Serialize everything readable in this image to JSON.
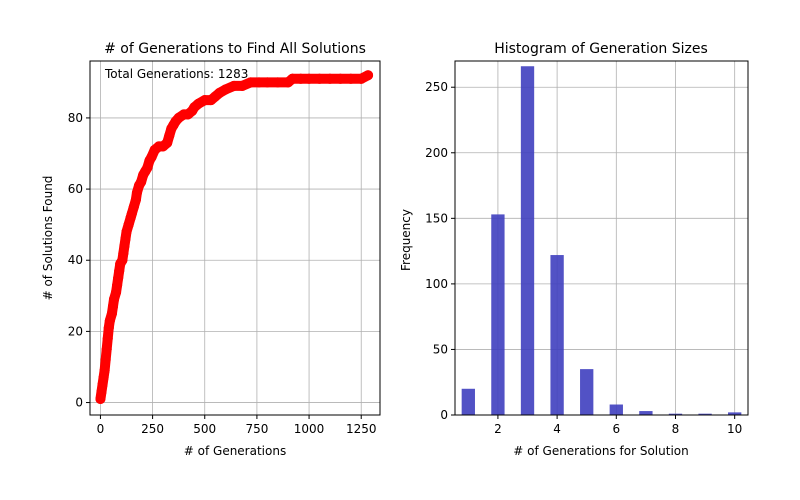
{
  "chart_data": [
    {
      "type": "scatter",
      "title": "# of Generations to Find All Solutions",
      "xlabel": "# of Generations",
      "ylabel": "# of Solutions Found",
      "annotation": "Total Generations: 1283",
      "xlim": [
        -50,
        1340
      ],
      "ylim": [
        -3.5,
        96
      ],
      "xticks": [
        0,
        250,
        500,
        750,
        1000,
        1250
      ],
      "yticks": [
        0,
        20,
        40,
        60,
        80
      ],
      "grid": true,
      "color": "#ff0000",
      "points": [
        [
          0,
          1
        ],
        [
          5,
          3
        ],
        [
          10,
          5
        ],
        [
          15,
          7
        ],
        [
          20,
          9
        ],
        [
          25,
          12
        ],
        [
          30,
          15
        ],
        [
          35,
          18
        ],
        [
          40,
          21
        ],
        [
          45,
          23
        ],
        [
          55,
          25
        ],
        [
          60,
          27
        ],
        [
          65,
          29
        ],
        [
          75,
          31
        ],
        [
          80,
          33
        ],
        [
          85,
          35
        ],
        [
          90,
          37
        ],
        [
          95,
          39
        ],
        [
          105,
          40
        ],
        [
          110,
          42
        ],
        [
          115,
          44
        ],
        [
          120,
          46
        ],
        [
          125,
          48
        ],
        [
          135,
          50
        ],
        [
          145,
          52
        ],
        [
          150,
          53
        ],
        [
          160,
          55
        ],
        [
          170,
          57
        ],
        [
          175,
          59
        ],
        [
          185,
          61
        ],
        [
          195,
          62
        ],
        [
          205,
          64
        ],
        [
          215,
          65
        ],
        [
          225,
          66
        ],
        [
          235,
          68
        ],
        [
          245,
          69
        ],
        [
          260,
          71
        ],
        [
          280,
          72
        ],
        [
          300,
          72
        ],
        [
          320,
          73
        ],
        [
          330,
          75
        ],
        [
          340,
          77
        ],
        [
          350,
          78
        ],
        [
          360,
          79
        ],
        [
          375,
          80
        ],
        [
          400,
          81
        ],
        [
          420,
          81
        ],
        [
          440,
          82
        ],
        [
          450,
          83
        ],
        [
          470,
          84
        ],
        [
          500,
          85
        ],
        [
          530,
          85
        ],
        [
          550,
          86
        ],
        [
          570,
          87
        ],
        [
          600,
          88
        ],
        [
          640,
          89
        ],
        [
          680,
          89
        ],
        [
          720,
          90
        ],
        [
          760,
          90
        ],
        [
          800,
          90
        ],
        [
          850,
          90
        ],
        [
          900,
          90
        ],
        [
          920,
          91
        ],
        [
          960,
          91
        ],
        [
          1000,
          91
        ],
        [
          1050,
          91
        ],
        [
          1100,
          91
        ],
        [
          1150,
          91
        ],
        [
          1200,
          91
        ],
        [
          1250,
          91
        ],
        [
          1283,
          92
        ]
      ]
    },
    {
      "type": "bar",
      "title": "Histogram of Generation Sizes",
      "xlabel": "# of Generations for Solution",
      "ylabel": "Frequency",
      "xlim": [
        0.55,
        10.45
      ],
      "ylim": [
        0,
        270
      ],
      "xticks": [
        2,
        4,
        6,
        8,
        10
      ],
      "yticks": [
        0,
        50,
        100,
        150,
        200,
        250
      ],
      "grid": true,
      "color": "#3f3fbf",
      "bar_width": 0.45,
      "bars": [
        {
          "x": 1,
          "value": 20
        },
        {
          "x": 2,
          "value": 153
        },
        {
          "x": 3,
          "value": 266
        },
        {
          "x": 4,
          "value": 122
        },
        {
          "x": 5,
          "value": 35
        },
        {
          "x": 6,
          "value": 8
        },
        {
          "x": 7,
          "value": 3
        },
        {
          "x": 8,
          "value": 1
        },
        {
          "x": 9,
          "value": 1
        },
        {
          "x": 10,
          "value": 2
        }
      ]
    }
  ]
}
